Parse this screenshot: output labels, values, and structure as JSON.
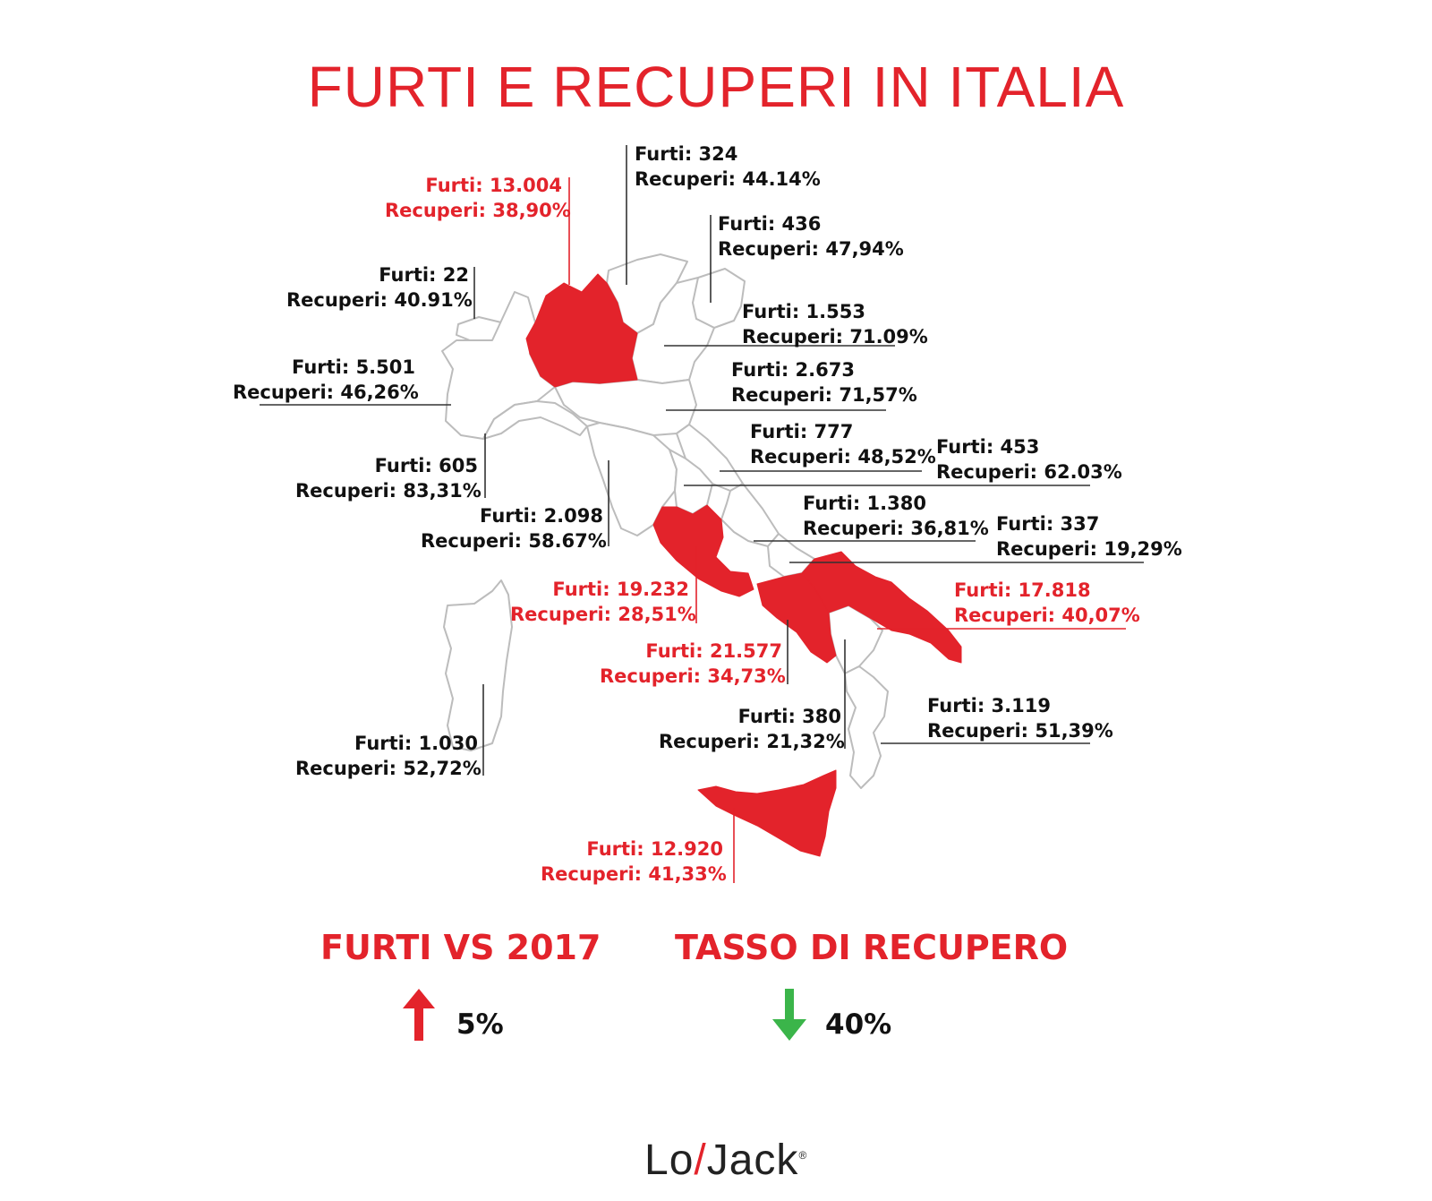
{
  "title": "FURTI E RECUPERI IN ITALIA",
  "colors": {
    "highlight": "#e3232b",
    "text": "#111111",
    "outline": "#bcbcbc",
    "down_arrow": "#3bb54a"
  },
  "regions": [
    {
      "id": "lombardia",
      "highlight": true,
      "furti": "Furti: 13.004",
      "recuperi": "Recuperi: 38,90%"
    },
    {
      "id": "trentino",
      "highlight": false,
      "furti": "Furti: 324",
      "recuperi": "Recuperi: 44.14%"
    },
    {
      "id": "friuli",
      "highlight": false,
      "furti": "Furti: 436",
      "recuperi": "Recuperi: 47,94%"
    },
    {
      "id": "valle-daosta",
      "highlight": false,
      "furti": "Furti: 22",
      "recuperi": "Recuperi: 40.91%"
    },
    {
      "id": "veneto",
      "highlight": false,
      "furti": "Furti: 1.553",
      "recuperi": "Recuperi: 71.09%"
    },
    {
      "id": "piemonte",
      "highlight": false,
      "furti": "Furti: 5.501",
      "recuperi": "Recuperi: 46,26%"
    },
    {
      "id": "emilia-romagna",
      "highlight": false,
      "furti": "Furti: 2.673",
      "recuperi": "Recuperi: 71,57%"
    },
    {
      "id": "marche",
      "highlight": false,
      "furti": "Furti: 777",
      "recuperi": "Recuperi: 48,52%"
    },
    {
      "id": "umbria",
      "highlight": false,
      "furti": "Furti: 453",
      "recuperi": "Recuperi: 62.03%"
    },
    {
      "id": "liguria",
      "highlight": false,
      "furti": "Furti: 605",
      "recuperi": "Recuperi: 83,31%"
    },
    {
      "id": "abruzzo",
      "highlight": false,
      "furti": "Furti: 1.380",
      "recuperi": "Recuperi: 36,81%"
    },
    {
      "id": "toscana",
      "highlight": false,
      "furti": "Furti: 2.098",
      "recuperi": "Recuperi:  58.67%"
    },
    {
      "id": "molise",
      "highlight": false,
      "furti": "Furti: 337",
      "recuperi": "Recuperi: 19,29%"
    },
    {
      "id": "lazio",
      "highlight": true,
      "furti": "Furti: 19.232",
      "recuperi": "Recuperi: 28,51%"
    },
    {
      "id": "puglia",
      "highlight": true,
      "furti": "Furti: 17.818",
      "recuperi": "Recuperi: 40,07%"
    },
    {
      "id": "campania",
      "highlight": true,
      "furti": "Furti: 21.577",
      "recuperi": "Recuperi: 34,73%"
    },
    {
      "id": "basilicata",
      "highlight": false,
      "furti": "Furti: 380",
      "recuperi": "Recuperi: 21,32%"
    },
    {
      "id": "calabria",
      "highlight": false,
      "furti": "Furti: 3.119",
      "recuperi": "Recuperi: 51,39%"
    },
    {
      "id": "sardegna",
      "highlight": false,
      "furti": "Furti: 1.030",
      "recuperi": "Recuperi: 52,72%"
    },
    {
      "id": "sicilia",
      "highlight": true,
      "furti": "Furti: 12.920",
      "recuperi": "Recuperi: 41,33%"
    }
  ],
  "stats": {
    "furti": {
      "title": "FURTI VS 2017",
      "value": "5%",
      "direction": "up",
      "icon": "arrow-up-icon"
    },
    "recupero": {
      "title": "TASSO DI  RECUPERO",
      "value": "40%",
      "direction": "down",
      "icon": "arrow-down-icon"
    }
  },
  "brand": {
    "name_left": "Lo",
    "name_right": "Jack",
    "logo_icon": "lojack-logo"
  }
}
